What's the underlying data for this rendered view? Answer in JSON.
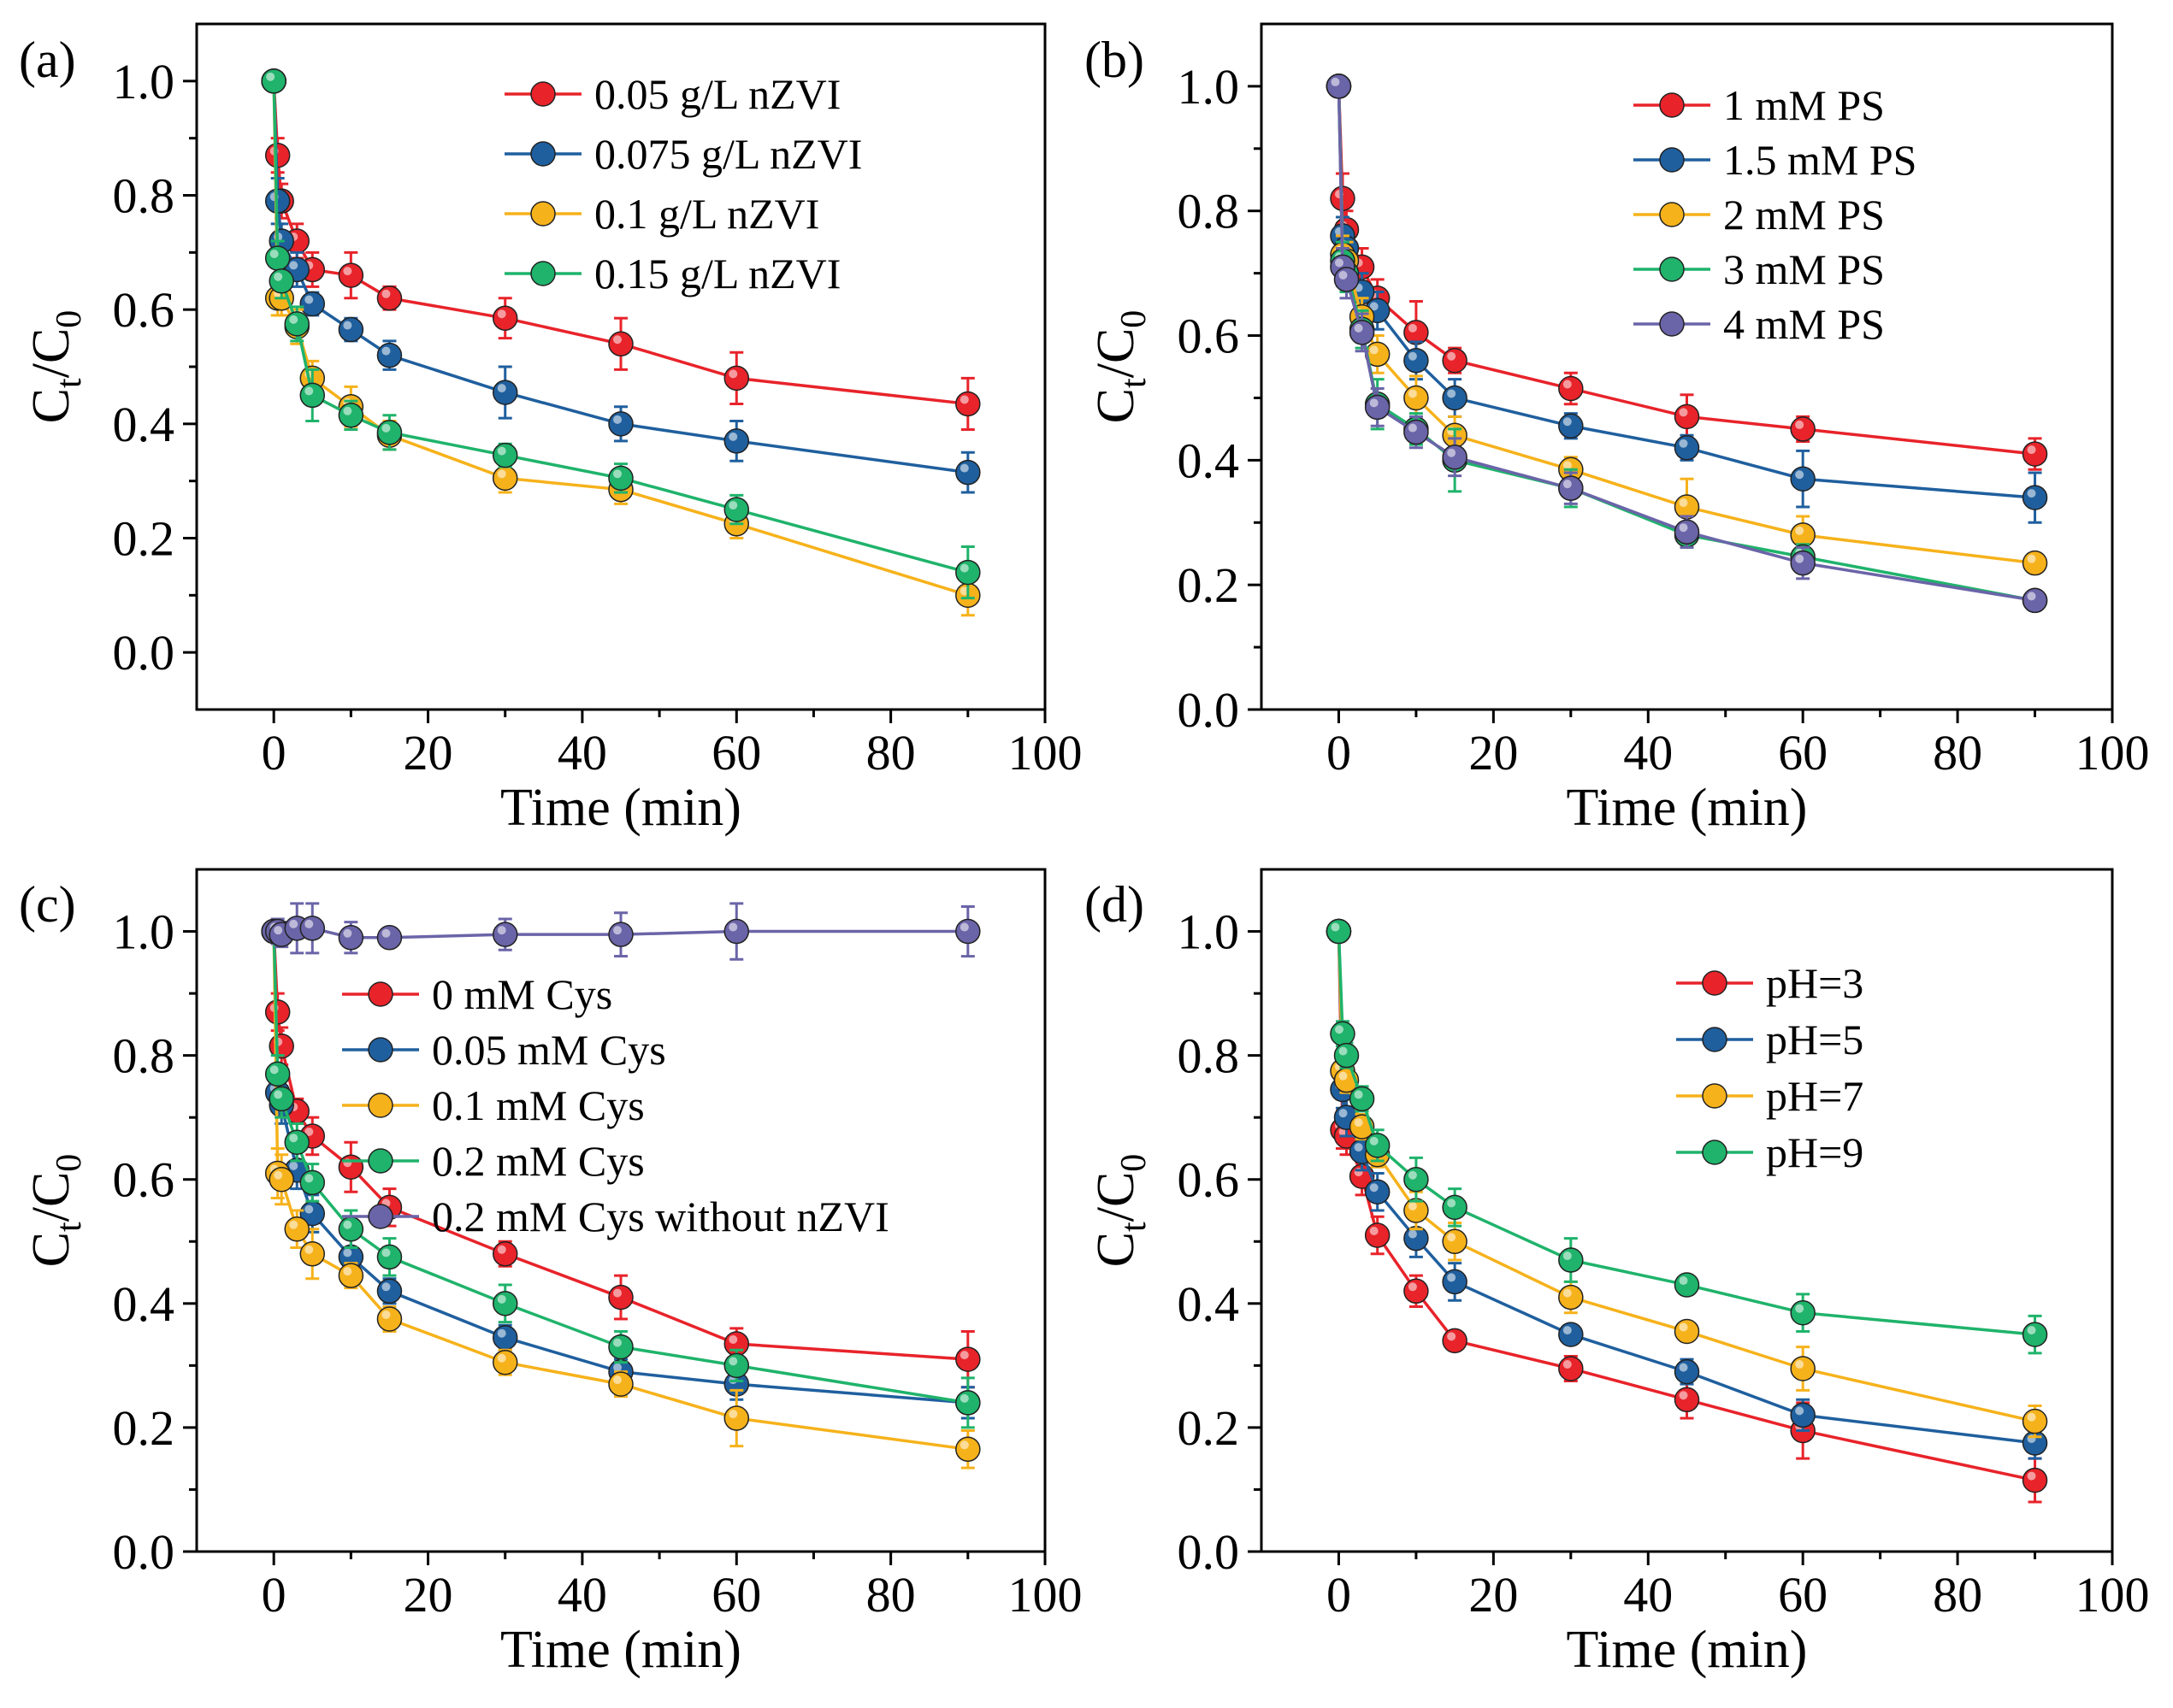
{
  "colors": {
    "red": "#e8232a",
    "blue": "#1f5f9e",
    "yellow": "#f6b21b",
    "green": "#1fb36b",
    "purple": "#6a64a8"
  },
  "chart_data": [
    {
      "type": "line",
      "panel_label": "(a)",
      "xlabel": "Time (min)",
      "ylabel_main": "C",
      "ylabel_sub1": "t",
      "ylabel_slash": "/C",
      "ylabel_sub2": "0",
      "xlim": [
        -10,
        100
      ],
      "ylim": [
        -0.1,
        1.1
      ],
      "xticks": [
        0,
        20,
        40,
        60,
        80,
        100
      ],
      "yticks": [
        0.0,
        0.2,
        0.4,
        0.6,
        0.8,
        1.0
      ],
      "xtick_labels": [
        "0",
        "20",
        "40",
        "60",
        "80",
        "100"
      ],
      "ytick_labels": [
        "0.0",
        "0.2",
        "0.4",
        "0.6",
        "0.8",
        "1.0"
      ],
      "legend_position": "top-right",
      "x": [
        0,
        0.5,
        1,
        3,
        5,
        10,
        15,
        30,
        45,
        60,
        90
      ],
      "series": [
        {
          "name": "0.05 g/L nZVI",
          "color": "red",
          "values": [
            1.0,
            0.87,
            0.79,
            0.72,
            0.67,
            0.66,
            0.62,
            0.585,
            0.54,
            0.48,
            0.435
          ],
          "errors": [
            0,
            0.03,
            0.03,
            0.03,
            0.03,
            0.04,
            0.02,
            0.035,
            0.045,
            0.045,
            0.045
          ]
        },
        {
          "name": "0.075 g/L nZVI",
          "color": "blue",
          "values": [
            1.0,
            0.79,
            0.72,
            0.67,
            0.61,
            0.565,
            0.52,
            0.455,
            0.4,
            0.37,
            0.315
          ],
          "errors": [
            0,
            0.04,
            0.03,
            0.03,
            0.02,
            0.02,
            0.025,
            0.045,
            0.03,
            0.035,
            0.035
          ]
        },
        {
          "name": "0.1 g/L nZVI",
          "color": "yellow",
          "values": [
            1.0,
            0.62,
            0.62,
            0.57,
            0.48,
            0.43,
            0.38,
            0.305,
            0.285,
            0.225,
            0.1
          ],
          "errors": [
            0,
            0.03,
            0.03,
            0.03,
            0.03,
            0.035,
            0.025,
            0.025,
            0.025,
            0.025,
            0.035
          ]
        },
        {
          "name": "0.15 g/L nZVI",
          "color": "green",
          "values": [
            1.0,
            0.69,
            0.65,
            0.575,
            0.45,
            0.415,
            0.385,
            0.345,
            0.305,
            0.25,
            0.14
          ],
          "errors": [
            0,
            0.03,
            0.03,
            0.03,
            0.045,
            0.025,
            0.03,
            0.02,
            0.025,
            0.025,
            0.045
          ]
        }
      ]
    },
    {
      "type": "line",
      "panel_label": "(b)",
      "xlabel": "Time (min)",
      "ylabel_main": "C",
      "ylabel_sub1": "t",
      "ylabel_slash": "/C",
      "ylabel_sub2": "0",
      "xlim": [
        -10,
        100
      ],
      "ylim": [
        0.0,
        1.1
      ],
      "xticks": [
        0,
        20,
        40,
        60,
        80,
        100
      ],
      "yticks": [
        0.0,
        0.2,
        0.4,
        0.6,
        0.8,
        1.0
      ],
      "xtick_labels": [
        "0",
        "20",
        "40",
        "60",
        "80",
        "100"
      ],
      "ytick_labels": [
        "0.0",
        "0.2",
        "0.4",
        "0.6",
        "0.8",
        "1.0"
      ],
      "legend_position": "top-right",
      "x": [
        0,
        0.5,
        1,
        3,
        5,
        10,
        15,
        30,
        45,
        60,
        90
      ],
      "series": [
        {
          "name": "1 mM PS",
          "color": "red",
          "values": [
            1.0,
            0.82,
            0.77,
            0.71,
            0.66,
            0.605,
            0.56,
            0.515,
            0.47,
            0.45,
            0.41
          ],
          "errors": [
            0,
            0.04,
            0.03,
            0.03,
            0.03,
            0.05,
            0.02,
            0.025,
            0.035,
            0.02,
            0.025
          ]
        },
        {
          "name": "1.5 mM PS",
          "color": "blue",
          "values": [
            1.0,
            0.76,
            0.74,
            0.67,
            0.64,
            0.56,
            0.5,
            0.455,
            0.42,
            0.37,
            0.34
          ],
          "errors": [
            0,
            0.03,
            0.03,
            0.03,
            0.03,
            0.03,
            0.03,
            0.02,
            0.02,
            0.045,
            0.04
          ]
        },
        {
          "name": "2 mM PS",
          "color": "yellow",
          "values": [
            1.0,
            0.73,
            0.72,
            0.63,
            0.57,
            0.5,
            0.44,
            0.385,
            0.325,
            0.28,
            0.235
          ],
          "errors": [
            0,
            0.03,
            0.03,
            0.03,
            0.03,
            0.035,
            0.03,
            0.02,
            0.045,
            0.03,
            0.015
          ]
        },
        {
          "name": "3 mM PS",
          "color": "green",
          "values": [
            1.0,
            0.72,
            0.7,
            0.61,
            0.49,
            0.45,
            0.4,
            0.355,
            0.28,
            0.245,
            0.175
          ],
          "errors": [
            0,
            0.03,
            0.03,
            0.03,
            0.04,
            0.025,
            0.05,
            0.03,
            0.02,
            0.02,
            0.015
          ]
        },
        {
          "name": "4 mM PS",
          "color": "purple",
          "values": [
            1.0,
            0.71,
            0.69,
            0.605,
            0.485,
            0.445,
            0.405,
            0.355,
            0.285,
            0.235,
            0.175
          ],
          "errors": [
            0,
            0.03,
            0.03,
            0.03,
            0.03,
            0.025,
            0.03,
            0.025,
            0.025,
            0.025,
            0.015
          ]
        }
      ]
    },
    {
      "type": "line",
      "panel_label": "(c)",
      "xlabel": "Time (min)",
      "ylabel_main": "C",
      "ylabel_sub1": "t",
      "ylabel_slash": "/C",
      "ylabel_sub2": "0",
      "xlim": [
        -10,
        100
      ],
      "ylim": [
        0.0,
        1.1
      ],
      "xticks": [
        0,
        20,
        40,
        60,
        80,
        100
      ],
      "yticks": [
        0.0,
        0.2,
        0.4,
        0.6,
        0.8,
        1.0
      ],
      "xtick_labels": [
        "0",
        "20",
        "40",
        "60",
        "80",
        "100"
      ],
      "ytick_labels": [
        "0.0",
        "0.2",
        "0.4",
        "0.6",
        "0.8",
        "1.0"
      ],
      "legend_position": "center-right",
      "x": [
        0,
        0.5,
        1,
        3,
        5,
        10,
        15,
        30,
        45,
        60,
        90
      ],
      "series": [
        {
          "name": "0 mM Cys",
          "color": "red",
          "values": [
            1.0,
            0.87,
            0.815,
            0.71,
            0.67,
            0.62,
            0.555,
            0.48,
            0.41,
            0.335,
            0.31
          ],
          "errors": [
            0,
            0.03,
            0.03,
            0.02,
            0.03,
            0.04,
            0.03,
            0.02,
            0.035,
            0.025,
            0.045
          ]
        },
        {
          "name": "0.05 mM Cys",
          "color": "blue",
          "values": [
            1.0,
            0.74,
            0.72,
            0.615,
            0.545,
            0.475,
            0.42,
            0.345,
            0.29,
            0.27,
            0.24
          ],
          "errors": [
            0,
            0.03,
            0.03,
            0.03,
            0.03,
            0.03,
            0.02,
            0.02,
            0.02,
            0.025,
            0.025
          ]
        },
        {
          "name": "0.1 mM Cys",
          "color": "yellow",
          "values": [
            1.0,
            0.61,
            0.6,
            0.52,
            0.48,
            0.445,
            0.375,
            0.305,
            0.27,
            0.215,
            0.165
          ],
          "errors": [
            0,
            0.04,
            0.04,
            0.03,
            0.04,
            0.02,
            0.02,
            0.02,
            0.02,
            0.045,
            0.03
          ]
        },
        {
          "name": "0.2 mM Cys",
          "color": "green",
          "values": [
            1.0,
            0.77,
            0.73,
            0.66,
            0.595,
            0.52,
            0.475,
            0.4,
            0.33,
            0.3,
            0.24
          ],
          "errors": [
            0,
            0.03,
            0.03,
            0.03,
            0.03,
            0.03,
            0.03,
            0.03,
            0.025,
            0.025,
            0.04
          ]
        },
        {
          "name": "0.2 mM Cys without nZVI",
          "color": "purple",
          "values": [
            1.0,
            1.0,
            0.995,
            1.005,
            1.005,
            0.99,
            0.99,
            0.995,
            0.995,
            1.0,
            1.0
          ],
          "errors": [
            0,
            0.02,
            0.02,
            0.04,
            0.04,
            0.025,
            0.01,
            0.025,
            0.035,
            0.045,
            0.04
          ]
        }
      ]
    },
    {
      "type": "line",
      "panel_label": "(d)",
      "xlabel": "Time (min)",
      "ylabel_main": "C",
      "ylabel_sub1": "t",
      "ylabel_slash": "/C",
      "ylabel_sub2": "0",
      "xlim": [
        -10,
        100
      ],
      "ylim": [
        0.0,
        1.1
      ],
      "xticks": [
        0,
        20,
        40,
        60,
        80,
        100
      ],
      "yticks": [
        0.0,
        0.2,
        0.4,
        0.6,
        0.8,
        1.0
      ],
      "xtick_labels": [
        "0",
        "20",
        "40",
        "60",
        "80",
        "100"
      ],
      "ytick_labels": [
        "0.0",
        "0.2",
        "0.4",
        "0.6",
        "0.8",
        "1.0"
      ],
      "legend_position": "center-right",
      "x": [
        0,
        0.5,
        1,
        3,
        5,
        10,
        15,
        30,
        45,
        60,
        90
      ],
      "series": [
        {
          "name": "pH=3",
          "color": "red",
          "values": [
            1.0,
            0.68,
            0.67,
            0.605,
            0.51,
            0.42,
            0.34,
            0.295,
            0.245,
            0.195,
            0.115
          ],
          "errors": [
            0,
            0.03,
            0.03,
            0.03,
            0.03,
            0.025,
            0.015,
            0.02,
            0.03,
            0.045,
            0.035
          ]
        },
        {
          "name": "pH=5",
          "color": "blue",
          "values": [
            1.0,
            0.745,
            0.7,
            0.645,
            0.58,
            0.505,
            0.435,
            0.35,
            0.29,
            0.22,
            0.175
          ],
          "errors": [
            0,
            0.03,
            0.03,
            0.03,
            0.03,
            0.03,
            0.03,
            0.015,
            0.02,
            0.025,
            0.025
          ]
        },
        {
          "name": "pH=7",
          "color": "yellow",
          "values": [
            1.0,
            0.775,
            0.76,
            0.685,
            0.64,
            0.55,
            0.5,
            0.41,
            0.355,
            0.295,
            0.21
          ],
          "errors": [
            0,
            0.02,
            0.02,
            0.02,
            0.02,
            0.03,
            0.03,
            0.025,
            0.015,
            0.035,
            0.025
          ]
        },
        {
          "name": "pH=9",
          "color": "green",
          "values": [
            1.0,
            0.835,
            0.8,
            0.73,
            0.655,
            0.6,
            0.555,
            0.47,
            0.43,
            0.385,
            0.35
          ],
          "errors": [
            0,
            0.02,
            0.02,
            0.02,
            0.025,
            0.035,
            0.03,
            0.035,
            0.015,
            0.03,
            0.03
          ]
        }
      ]
    }
  ]
}
